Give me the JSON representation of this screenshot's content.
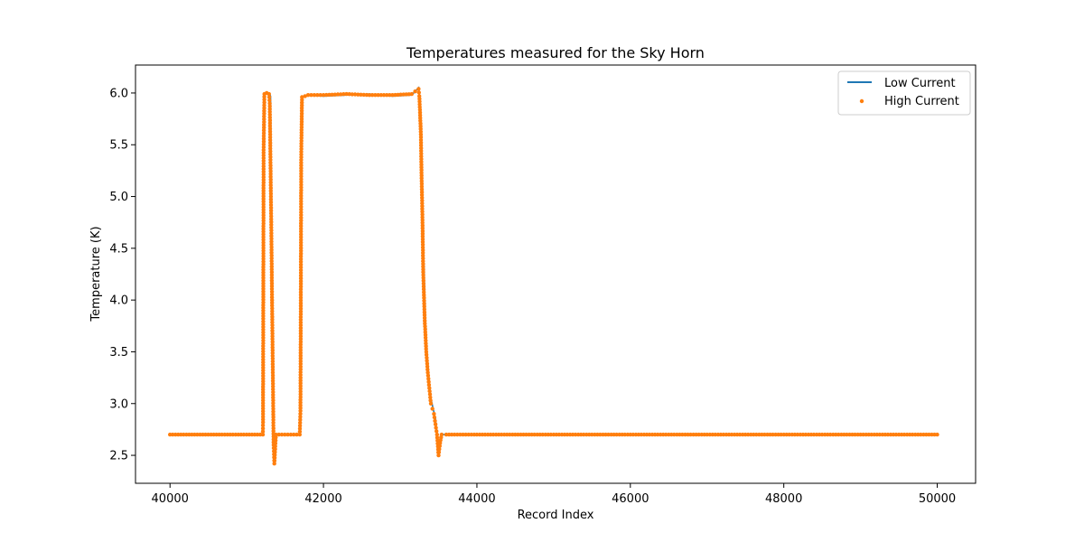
{
  "chart_data": {
    "type": "line",
    "title": "Temperatures measured for the Sky Horn",
    "xlabel": "Record Index",
    "ylabel": "Temperature (K)",
    "xlim": [
      39550,
      50500
    ],
    "ylim": [
      2.23,
      6.27
    ],
    "xticks": [
      40000,
      42000,
      44000,
      46000,
      48000,
      50000
    ],
    "yticks": [
      2.5,
      3.0,
      3.5,
      4.0,
      4.5,
      5.0,
      5.5,
      6.0
    ],
    "ytick_labels": [
      "2.5",
      "3.0",
      "3.5",
      "4.0",
      "4.5",
      "5.0",
      "5.5",
      "6.0"
    ],
    "grid": false,
    "legend": "top-right",
    "series": [
      {
        "name": "Low Current",
        "style": "line",
        "color": "#1f77b4",
        "x": [
          40000,
          41210,
          41215,
          41230,
          41260,
          41290,
          41310,
          41330,
          41340,
          41360,
          41380,
          41690,
          41700,
          41720,
          41800,
          42000,
          42300,
          42600,
          42900,
          43150,
          43240,
          43250,
          43280,
          43300,
          43330,
          43350,
          43380,
          43400,
          43430,
          43460,
          43480,
          43500,
          43520,
          43540,
          43600,
          44000,
          45000,
          46000,
          47000,
          48000,
          49000,
          50000
        ],
        "y": [
          2.7,
          2.7,
          5.7,
          5.99,
          6.0,
          6.0,
          5.97,
          4.5,
          3.2,
          2.45,
          2.7,
          2.7,
          4.0,
          5.96,
          5.98,
          5.97,
          5.98,
          5.99,
          5.97,
          5.98,
          6.05,
          5.98,
          5.5,
          4.6,
          3.8,
          3.5,
          3.2,
          3.05,
          2.95,
          2.85,
          2.7,
          2.55,
          2.65,
          2.7,
          2.7,
          2.7,
          2.7,
          2.7,
          2.7,
          2.7,
          2.7,
          2.7
        ]
      },
      {
        "name": "High Current",
        "style": "scatter",
        "color": "#ff7f0e",
        "x": [
          40000,
          41210,
          41212,
          41220,
          41230,
          41260,
          41290,
          41300,
          41310,
          41320,
          41330,
          41340,
          41350,
          41360,
          41380,
          41690,
          41700,
          41705,
          41710,
          41720,
          41800,
          42000,
          42300,
          42600,
          42900,
          43150,
          43240,
          43250,
          43270,
          43280,
          43290,
          43300,
          43320,
          43340,
          43360,
          43380,
          43400,
          43420,
          43440,
          43460,
          43480,
          43500,
          43520,
          43540,
          43600,
          44000,
          45000,
          46000,
          47000,
          48000,
          49000,
          50000
        ],
        "y": [
          2.7,
          2.7,
          2.82,
          5.45,
          5.99,
          6.0,
          5.99,
          5.9,
          5.3,
          4.7,
          4.0,
          3.3,
          2.6,
          2.42,
          2.7,
          2.7,
          2.93,
          4.05,
          5.38,
          5.96,
          5.98,
          5.98,
          5.99,
          5.98,
          5.98,
          5.99,
          6.04,
          5.97,
          5.6,
          5.15,
          4.8,
          4.27,
          3.8,
          3.5,
          3.3,
          3.15,
          3.0,
          2.95,
          2.9,
          2.8,
          2.7,
          2.5,
          2.62,
          2.7,
          2.7,
          2.7,
          2.7,
          2.7,
          2.7,
          2.7,
          2.7,
          2.7
        ]
      }
    ]
  }
}
